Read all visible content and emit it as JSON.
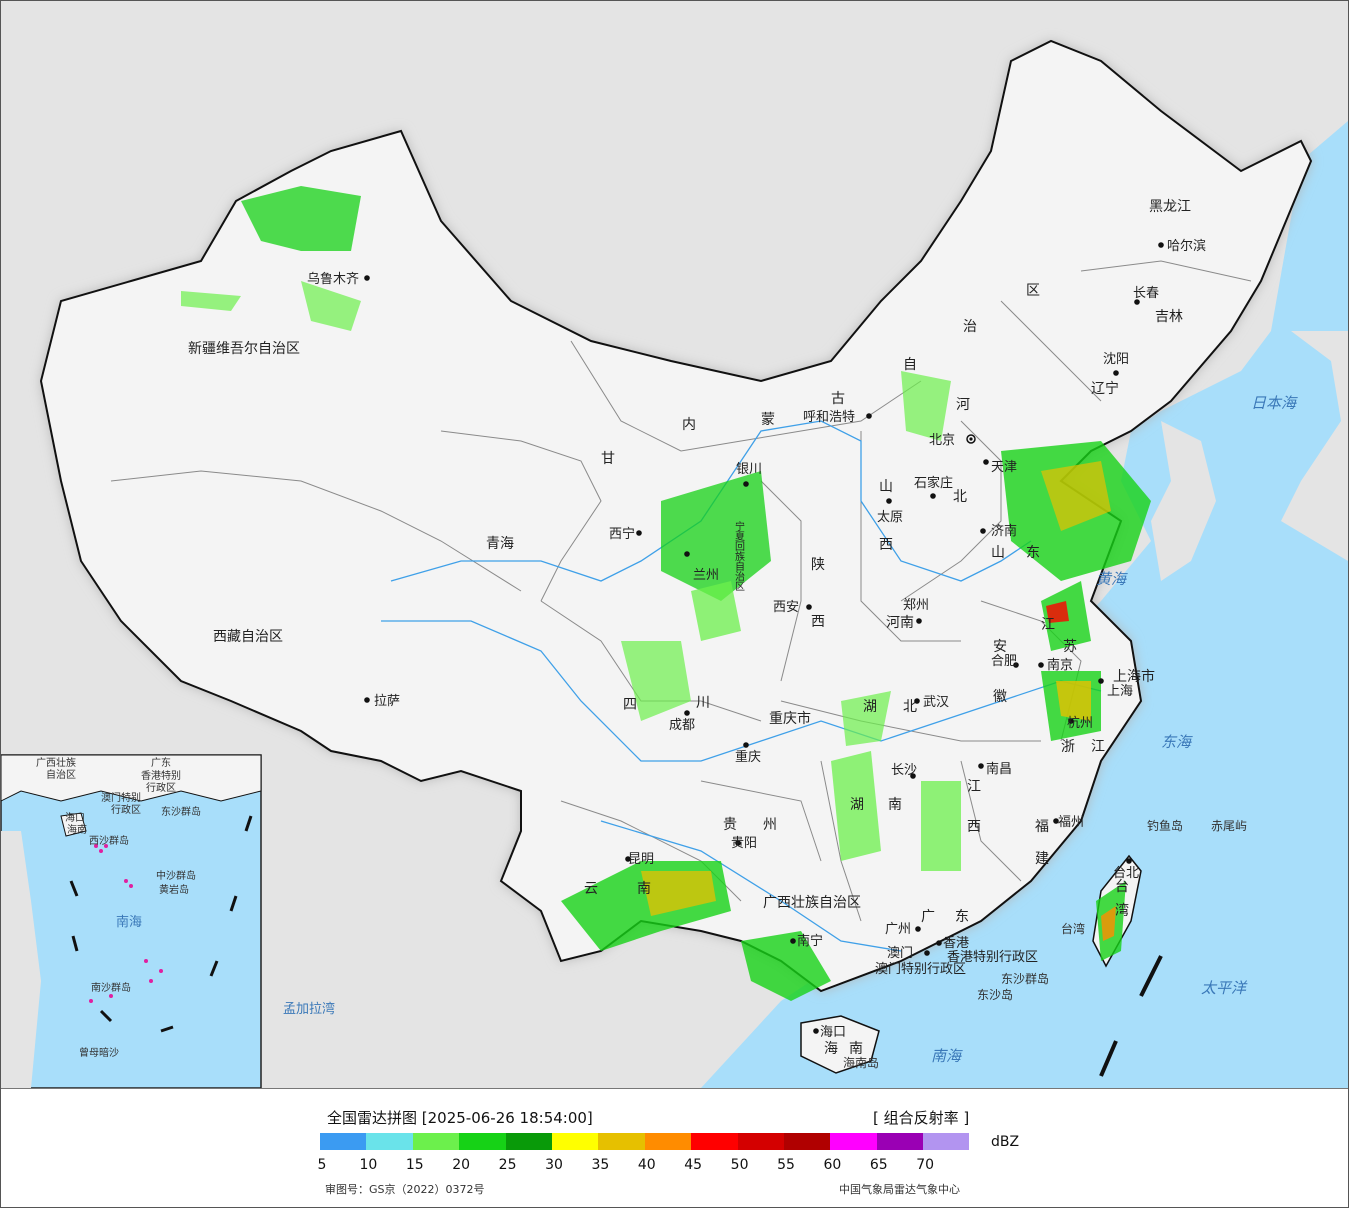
{
  "colors": {
    "sea": "#a8defa",
    "foreign_land": "#e4e4e4",
    "china_land": "#f4f4f4",
    "border": "#111111",
    "province_line": "#8a8a8a",
    "river": "#3fa0e8",
    "legend_colors": [
      "#3b9bf2",
      "#6ae3ea",
      "#6cf04c",
      "#16d216",
      "#099a09",
      "#ffff00",
      "#e6c000",
      "#ff8c00",
      "#ff0000",
      "#d40000",
      "#b00000",
      "#ff00ff",
      "#9a00b4",
      "#b294f0"
    ]
  },
  "icons": {
    "city_marker": "black-dot-icon",
    "capital_marker": "capital-star-icon"
  },
  "provinces": [
    "新疆维吾尔自治区",
    "西藏自治区",
    "青海",
    "甘",
    "内",
    "蒙",
    "古",
    "自",
    "治",
    "区",
    "黑龙江",
    "吉林",
    "辽宁",
    "河",
    "北",
    "山",
    "西",
    "陕",
    "西",
    "宁夏回族自治区",
    "四",
    "川",
    "重庆市",
    "湖",
    "北",
    "湖",
    "南",
    "河南",
    "山",
    "东",
    "江",
    "苏",
    "安",
    "徽",
    "浙",
    "江",
    "江",
    "西",
    "福",
    "建",
    "广",
    "东",
    "广西壮族自治区",
    "贵",
    "州",
    "云",
    "南",
    "台",
    "湾",
    "海",
    "南",
    "上海市"
  ],
  "cities": [
    "乌鲁木齐",
    "拉萨",
    "西宁",
    "兰州",
    "银川",
    "呼和浩特",
    "北京",
    "天津",
    "石家庄",
    "太原",
    "西安",
    "郑州",
    "济南",
    "合肥",
    "南京",
    "上海",
    "杭州",
    "武汉",
    "长沙",
    "南昌",
    "福州",
    "台北",
    "重庆",
    "成都",
    "贵阳",
    "昆明",
    "南宁",
    "广州",
    "香港",
    "澳门",
    "海口",
    "沈阳",
    "长春",
    "哈尔滨"
  ],
  "special_regions": [
    "香港特别行政区",
    "澳门特别行政区"
  ],
  "islands": [
    "钓鱼岛",
    "赤尾屿",
    "东沙群岛",
    "东沙岛",
    "海南岛",
    "台湾"
  ],
  "seas": [
    "日本海",
    "黄海",
    "东海",
    "太平洋",
    "南海",
    "孟加拉湾"
  ],
  "inset": {
    "labels": [
      "广西壮族",
      "自治区",
      "广东",
      "香港特别",
      "行政区",
      "澳门特别",
      "行政区",
      "东沙群岛",
      "海口",
      "海南",
      "西沙群岛",
      "中沙群岛",
      "黄岩岛",
      "南海",
      "南沙群岛",
      "曾母暗沙"
    ]
  },
  "legend": {
    "title": "全国雷达拼图 [2025-06-26 18:54:00]",
    "product": "[ 组合反射率 ]",
    "unit": "dBZ",
    "ticks": [
      5,
      10,
      15,
      20,
      25,
      30,
      35,
      40,
      45,
      50,
      55,
      60,
      65,
      70
    ],
    "approval_no": "审图号：GS京（2022）0372号",
    "source": "中国气象局雷达气象中心"
  }
}
